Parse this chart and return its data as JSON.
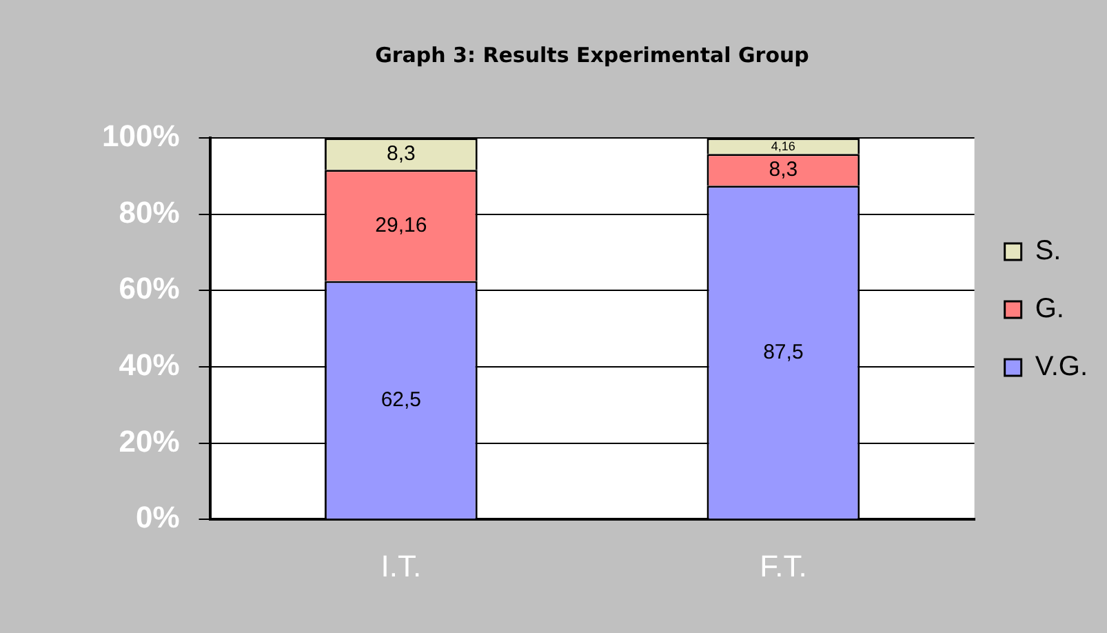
{
  "chart_data": {
    "type": "bar",
    "title": "Graph 3: Results Experimental Group",
    "categories": [
      "I.T.",
      "F.T."
    ],
    "stacked": true,
    "series": [
      {
        "name": "V.G.",
        "color": "#9999ff",
        "values": [
          62.5,
          87.5
        ],
        "value_labels": [
          "62,5",
          "87,5"
        ]
      },
      {
        "name": "G.",
        "color": "#ff7f7f",
        "values": [
          29.16,
          8.3
        ],
        "value_labels": [
          "29,16",
          "8,3"
        ]
      },
      {
        "name": "S.",
        "color": "#e6e6bf",
        "values": [
          8.3,
          4.16
        ],
        "value_labels": [
          "8,3",
          "4,16"
        ]
      }
    ],
    "ylim": [
      0,
      100
    ],
    "yticks": [
      {
        "value": 0,
        "label": "0%"
      },
      {
        "value": 20,
        "label": "20%"
      },
      {
        "value": 40,
        "label": "40%"
      },
      {
        "value": 60,
        "label": "60%"
      },
      {
        "value": 80,
        "label": "80%"
      },
      {
        "value": 100,
        "label": "100%"
      }
    ],
    "grid": "y",
    "legend": "right"
  }
}
